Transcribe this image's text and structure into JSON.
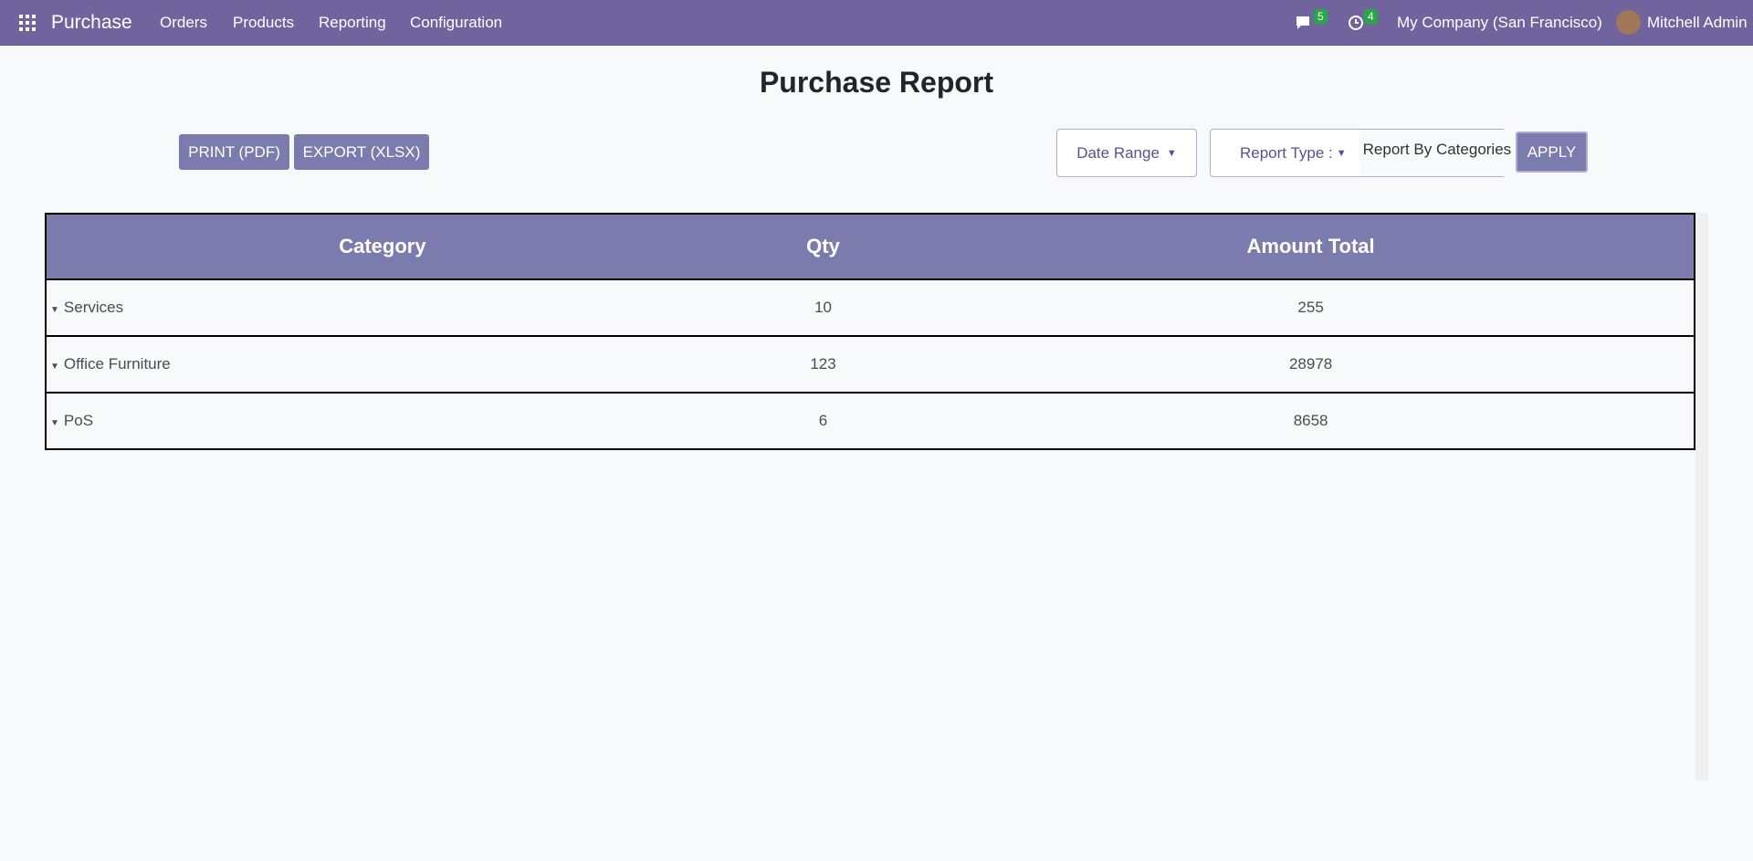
{
  "navbar": {
    "app": "Purchase",
    "menu": [
      "Orders",
      "Products",
      "Reporting",
      "Configuration"
    ],
    "messages_count": 5,
    "activities_count": 4,
    "company": "My Company (San Francisco)",
    "user": "Mitchell Admin"
  },
  "report": {
    "title": "Purchase Report",
    "buttons": [
      "PRINT (PDF)",
      "EXPORT (XLSX)"
    ],
    "filters": {
      "date_range": "Date Range",
      "report_type_label": "Report Type :",
      "report_type_value": "Report By Categories",
      "apply": "APPLY"
    }
  },
  "table": {
    "columns": [
      "Category",
      "Qty",
      "Amount Total"
    ],
    "rows": [
      [
        "Services",
        10,
        255
      ],
      [
        "Office Furniture",
        123,
        28978
      ],
      [
        "PoS",
        6,
        8658
      ]
    ]
  }
}
